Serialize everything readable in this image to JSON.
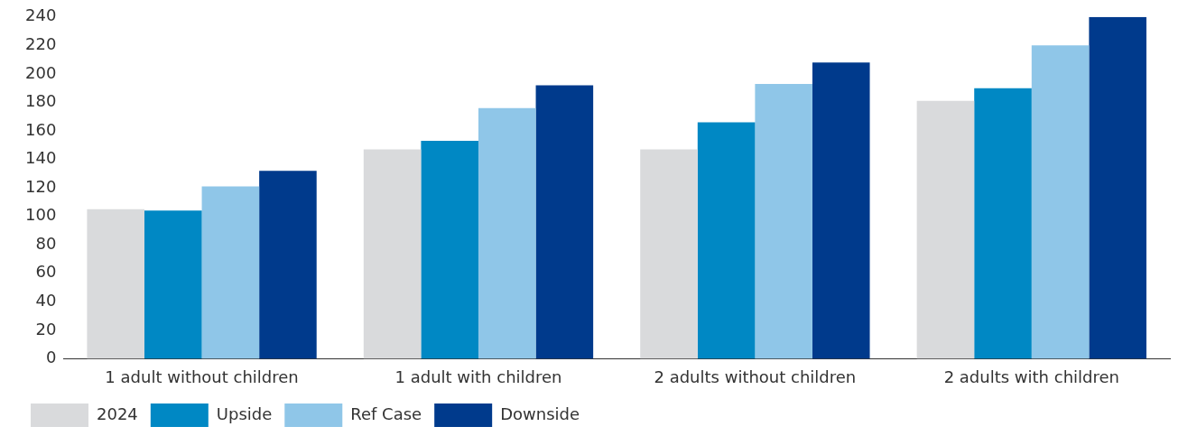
{
  "chart_data": {
    "type": "bar",
    "categories": [
      "1 adult without children",
      "1 adult with children",
      "2 adults without children",
      "2 adults with children"
    ],
    "series": [
      {
        "name": "2024",
        "color": "#d9dadc",
        "values": [
          105,
          147,
          147,
          181
        ]
      },
      {
        "name": "Upside",
        "color": "#0088c4",
        "values": [
          104,
          153,
          166,
          190
        ]
      },
      {
        "name": "Ref Case",
        "color": "#8fc6e8",
        "values": [
          121,
          176,
          193,
          220
        ]
      },
      {
        "name": "Downside",
        "color": "#003a8c",
        "values": [
          132,
          192,
          208,
          240
        ]
      }
    ],
    "ylim": [
      0,
      240
    ],
    "yticks": [
      0,
      20,
      40,
      60,
      80,
      100,
      120,
      140,
      160,
      180,
      200,
      220,
      240
    ],
    "grid": false,
    "legend": "bottom"
  }
}
